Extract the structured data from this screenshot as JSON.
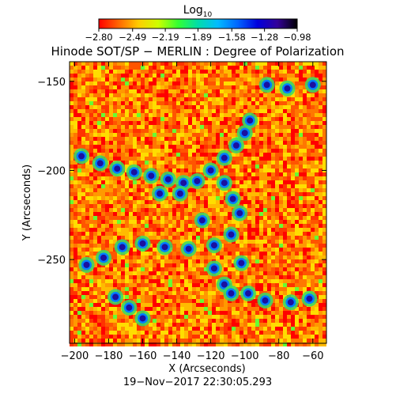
{
  "chart_data": {
    "type": "heatmap",
    "title": "Hinode SOT/SP − MERLIN : Degree of Polarization",
    "xlabel": "X (Arcseconds)",
    "ylabel": "Y (Arcseconds)",
    "xlim": [
      -203,
      -52
    ],
    "ylim": [
      -297,
      -139
    ],
    "x_ticks": [
      -200,
      -180,
      -160,
      -140,
      -120,
      -100,
      -80,
      -60
    ],
    "x_tick_labels": [
      "−200",
      "−180",
      "−160",
      "−140",
      "−120",
      "−100",
      "−80",
      "−60"
    ],
    "y_ticks": [
      -150,
      -200,
      -250
    ],
    "y_tick_labels": [
      "−150",
      "−200",
      "−250"
    ],
    "colorbar": {
      "label_base": "Log",
      "label_sub": "10",
      "range": [
        -2.8,
        -0.98
      ],
      "ticks": [
        -2.8,
        -2.49,
        -2.19,
        -1.89,
        -1.58,
        -1.28,
        -0.98
      ],
      "tick_labels": [
        "−2.80",
        "−2.49",
        "−2.19",
        "−1.89",
        "−1.58",
        "−1.28",
        "−0.98"
      ],
      "colormap": [
        "#ff0000",
        "#ff6600",
        "#ffcc00",
        "#ccff00",
        "#33ff33",
        "#00ddaa",
        "#00bbff",
        "#0066ff",
        "#0000dd",
        "#330099",
        "#000000"
      ]
    },
    "high_polarization_network": [
      {
        "x": -196,
        "y": -192
      },
      {
        "x": -185,
        "y": -196
      },
      {
        "x": -175,
        "y": -199
      },
      {
        "x": -165,
        "y": -201
      },
      {
        "x": -155,
        "y": -203
      },
      {
        "x": -145,
        "y": -205
      },
      {
        "x": -136,
        "y": -207
      },
      {
        "x": -128,
        "y": -206
      },
      {
        "x": -120,
        "y": -200
      },
      {
        "x": -112,
        "y": -193
      },
      {
        "x": -105,
        "y": -186
      },
      {
        "x": -100,
        "y": -179
      },
      {
        "x": -97,
        "y": -172
      },
      {
        "x": -112,
        "y": -207
      },
      {
        "x": -107,
        "y": -216
      },
      {
        "x": -103,
        "y": -224
      },
      {
        "x": -108,
        "y": -236
      },
      {
        "x": -118,
        "y": -242
      },
      {
        "x": -133,
        "y": -244
      },
      {
        "x": -147,
        "y": -243
      },
      {
        "x": -160,
        "y": -241
      },
      {
        "x": -172,
        "y": -243
      },
      {
        "x": -183,
        "y": -249
      },
      {
        "x": -193,
        "y": -253
      },
      {
        "x": -118,
        "y": -255
      },
      {
        "x": -112,
        "y": -264
      },
      {
        "x": -108,
        "y": -269
      },
      {
        "x": -98,
        "y": -269
      },
      {
        "x": -88,
        "y": -273
      },
      {
        "x": -73,
        "y": -274
      },
      {
        "x": -62,
        "y": -272
      },
      {
        "x": -176,
        "y": -271
      },
      {
        "x": -168,
        "y": -277
      },
      {
        "x": -160,
        "y": -283
      },
      {
        "x": -102,
        "y": -252
      },
      {
        "x": -60,
        "y": -152
      },
      {
        "x": -75,
        "y": -154
      },
      {
        "x": -87,
        "y": -152
      },
      {
        "x": -138,
        "y": -213
      },
      {
        "x": -150,
        "y": -213
      },
      {
        "x": -125,
        "y": -228
      }
    ],
    "footer": "19−Nov−2017 22:30:05.293"
  }
}
